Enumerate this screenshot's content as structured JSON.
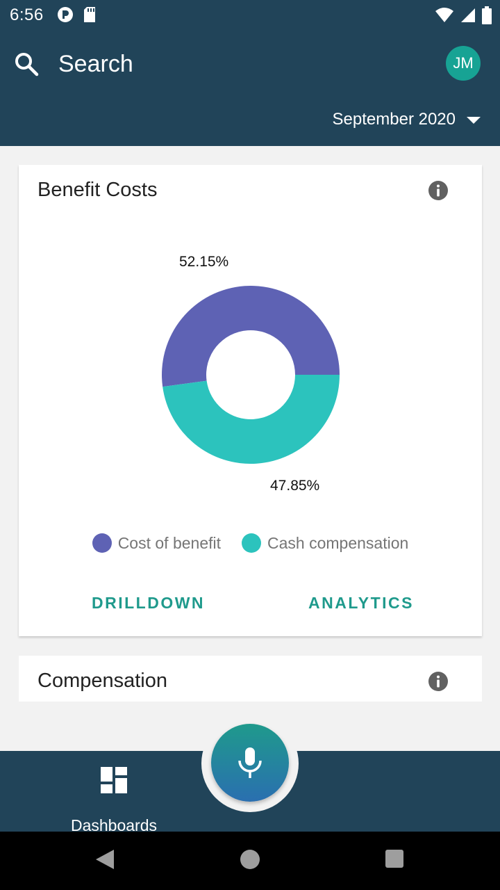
{
  "status_bar": {
    "time": "6:56",
    "left_icons": [
      "pocket-icon",
      "sd-card-icon"
    ],
    "right_icons": [
      "wifi-icon",
      "cell-signal-icon",
      "battery-icon"
    ]
  },
  "header": {
    "search_label": "Search",
    "search_icon": "search-icon",
    "avatar_initials": "JM",
    "period": "September 2020",
    "colors": {
      "background": "#214459",
      "avatar": "#17a394"
    }
  },
  "benefit_card": {
    "title": "Benefit Costs",
    "info_icon": "info-icon",
    "chart_data": {
      "type": "pie",
      "donut": true,
      "categories": [
        "Cost of benefit",
        "Cash compensation"
      ],
      "values": [
        52.15,
        47.85
      ],
      "colors": [
        "#5e62b4",
        "#2cc3bd"
      ],
      "data_labels": [
        "52.15%",
        "47.85%"
      ],
      "legend": "bottom"
    },
    "legend": [
      {
        "label": "Cost of benefit",
        "color": "#5e62b4"
      },
      {
        "label": "Cash compensation",
        "color": "#2cc3bd"
      }
    ],
    "actions": {
      "drilldown": "DRILLDOWN",
      "analytics": "ANALYTICS"
    }
  },
  "compensation_card": {
    "title": "Compensation",
    "info_icon": "info-icon"
  },
  "bottom_nav": {
    "dashboards_label": "Dashboards",
    "dashboards_icon": "dashboard-icon",
    "mic_icon": "mic-icon"
  },
  "system_nav": {
    "icons": [
      "back-icon",
      "home-icon",
      "recents-icon"
    ]
  }
}
